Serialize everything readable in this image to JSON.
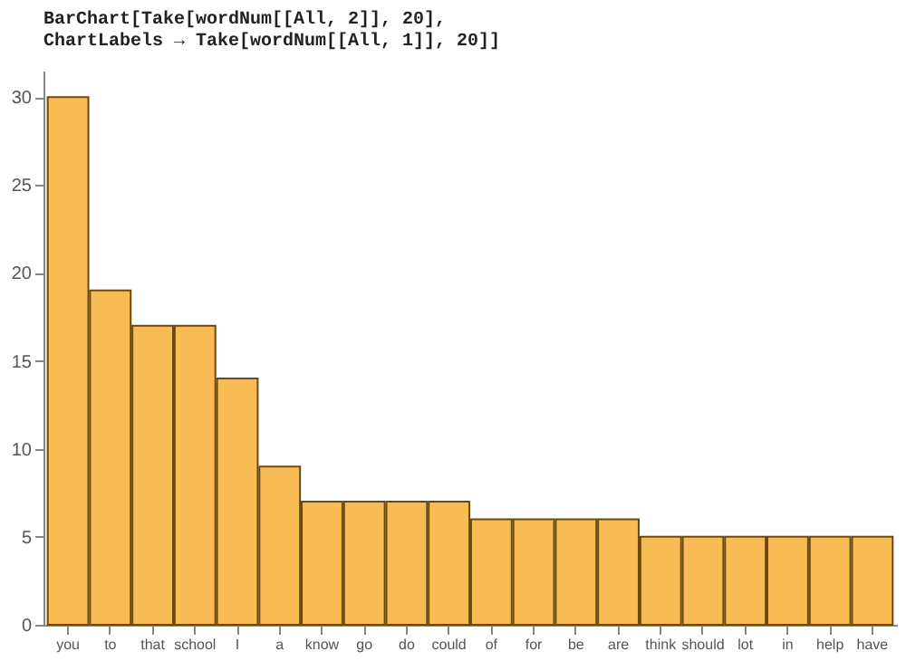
{
  "chart_data": {
    "type": "bar",
    "title": "BarChart[Take[wordNum[[All, 2]], 20],\n ChartLabels → Take[wordNum[[All, 1]], 20]]",
    "categories": [
      "you",
      "to",
      "that",
      "school",
      "I",
      "a",
      "know",
      "go",
      "do",
      "could",
      "of",
      "for",
      "be",
      "are",
      "think",
      "should",
      "lot",
      "in",
      "help",
      "have"
    ],
    "values": [
      30,
      19,
      17,
      17,
      14,
      9,
      7,
      7,
      7,
      7,
      6,
      6,
      6,
      6,
      5,
      5,
      5,
      5,
      5,
      5
    ],
    "color": "#f9bb53",
    "ylim": [
      0,
      31.5
    ],
    "yticks": [
      0,
      5,
      10,
      15,
      20,
      25,
      30
    ],
    "grid": false
  }
}
